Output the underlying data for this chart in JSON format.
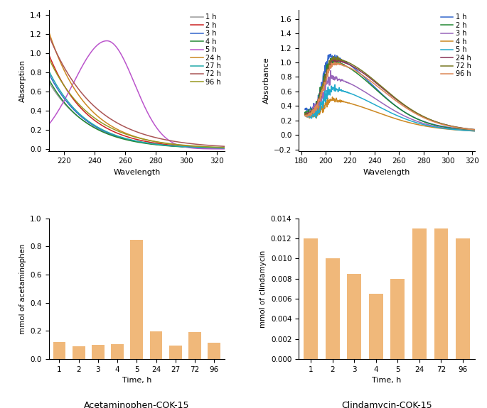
{
  "aceta_line_colors": [
    "#999999",
    "#cc2222",
    "#3366cc",
    "#228833",
    "#bb55cc",
    "#cc8822",
    "#22aaaa",
    "#aa5555",
    "#999922"
  ],
  "aceta_line_labels": [
    "1 h",
    "2 h",
    "3 h",
    "4 h",
    "5 h",
    "24 h",
    "27 h",
    "72 h",
    "96 h"
  ],
  "clind_line_colors": [
    "#3366cc",
    "#228833",
    "#9966bb",
    "#cc8822",
    "#22aacc",
    "#883355",
    "#777722",
    "#dd8855"
  ],
  "clind_line_labels": [
    "1 h",
    "2 h",
    "3 h",
    "4 h",
    "5 h",
    "24 h",
    "72 h",
    "96 h"
  ],
  "bar_color": "#f0b87a",
  "aceta_bar_times": [
    "1",
    "2",
    "3",
    "4",
    "5",
    "24",
    "27",
    "72",
    "96"
  ],
  "aceta_bar_values": [
    0.12,
    0.092,
    0.1,
    0.107,
    0.848,
    0.197,
    0.097,
    0.192,
    0.116
  ],
  "clind_bar_times": [
    "1",
    "2",
    "3",
    "4",
    "5",
    "24",
    "72",
    "96"
  ],
  "clind_bar_values": [
    0.012,
    0.01,
    0.0085,
    0.0065,
    0.008,
    0.013,
    0.013,
    0.012
  ],
  "aceta_ylabel": "Absorption",
  "aceta_bar_ylabel": "mmol of acetaminophen",
  "aceta_bar_xlabel": "Time, h",
  "clind_ylabel": "Absorbance",
  "clind_bar_ylabel": "mmol of clindamycin",
  "clind_bar_xlabel": "Time, h",
  "aceta_xlabel": "Wavelength",
  "clind_xlabel": "Wavelength",
  "aceta_title": "Acetaminophen-COK-15",
  "clind_title": "Clindamycin-COK-15",
  "aceta_xlim": [
    210,
    325
  ],
  "aceta_ylim": [
    -0.02,
    1.45
  ],
  "clind_xlim": [
    178,
    322
  ],
  "clind_ylim": [
    -0.22,
    1.72
  ],
  "aceta_bar_ylim": [
    0,
    1.0
  ],
  "clind_bar_ylim": [
    0,
    0.014
  ]
}
